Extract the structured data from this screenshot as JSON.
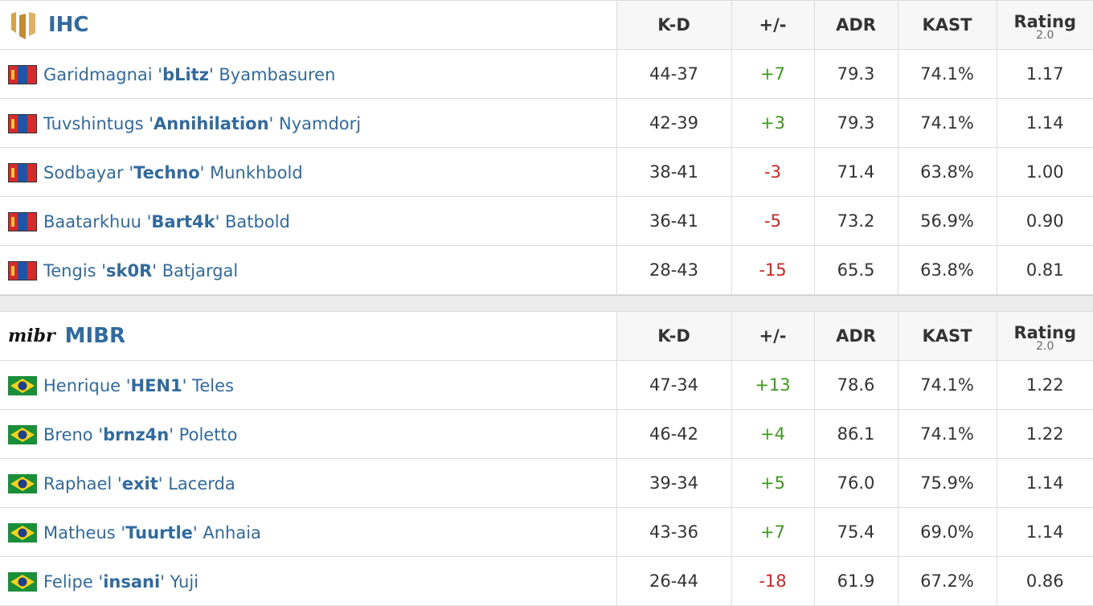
{
  "teams": [
    {
      "name": "IHC",
      "headers": [
        "K-D",
        "+/-",
        "ADR",
        "KAST",
        "Rating"
      ],
      "rating_sub": "2.0",
      "players": [
        {
          "name_before": "Garidmagnai '",
          "nickname": "bLitz",
          "name_after": "' Byambasuren",
          "kd": "44-37",
          "plus_minus": "+7",
          "adr": "79.3",
          "kast": "74.1%",
          "rating": "1.17"
        },
        {
          "name_before": "Tuvshintugs '",
          "nickname": "Annihilation",
          "name_after": "' Nyamdorj",
          "kd": "42-39",
          "plus_minus": "+3",
          "adr": "79.3",
          "kast": "74.1%",
          "rating": "1.14"
        },
        {
          "name_before": "Sodbayar '",
          "nickname": "Techno",
          "name_after": "' Munkhbold",
          "kd": "38-41",
          "plus_minus": "-3",
          "adr": "71.4",
          "kast": "63.8%",
          "rating": "1.00"
        },
        {
          "name_before": "Baatarkhuu '",
          "nickname": "Bart4k",
          "name_after": "' Batbold",
          "kd": "36-41",
          "plus_minus": "-5",
          "adr": "73.2",
          "kast": "56.9%",
          "rating": "0.90"
        },
        {
          "name_before": "Tengis '",
          "nickname": "sk0R",
          "name_after": "' Batjargal",
          "kd": "28-43",
          "plus_minus": "-15",
          "adr": "65.5",
          "kast": "63.8%",
          "rating": "0.81"
        }
      ]
    },
    {
      "name": "MIBR",
      "logo_text": "mibr",
      "headers": [
        "K-D",
        "+/-",
        "ADR",
        "KAST",
        "Rating"
      ],
      "rating_sub": "2.0",
      "players": [
        {
          "name_before": "Henrique '",
          "nickname": "HEN1",
          "name_after": "' Teles",
          "kd": "47-34",
          "plus_minus": "+13",
          "adr": "78.6",
          "kast": "74.1%",
          "rating": "1.22"
        },
        {
          "name_before": "Breno '",
          "nickname": "brnz4n",
          "name_after": "' Poletto",
          "kd": "46-42",
          "plus_minus": "+4",
          "adr": "86.1",
          "kast": "74.1%",
          "rating": "1.22"
        },
        {
          "name_before": "Raphael '",
          "nickname": "exit",
          "name_after": "' Lacerda",
          "kd": "39-34",
          "plus_minus": "+5",
          "adr": "76.0",
          "kast": "75.9%",
          "rating": "1.14"
        },
        {
          "name_before": "Matheus '",
          "nickname": "Tuurtle",
          "name_after": "' Anhaia",
          "kd": "43-36",
          "plus_minus": "+7",
          "adr": "75.4",
          "kast": "69.0%",
          "rating": "1.14"
        },
        {
          "name_before": "Felipe '",
          "nickname": "insani",
          "name_after": "' Yuji",
          "kd": "26-44",
          "plus_minus": "-18",
          "adr": "61.9",
          "kast": "67.2%",
          "rating": "0.86"
        }
      ]
    }
  ]
}
